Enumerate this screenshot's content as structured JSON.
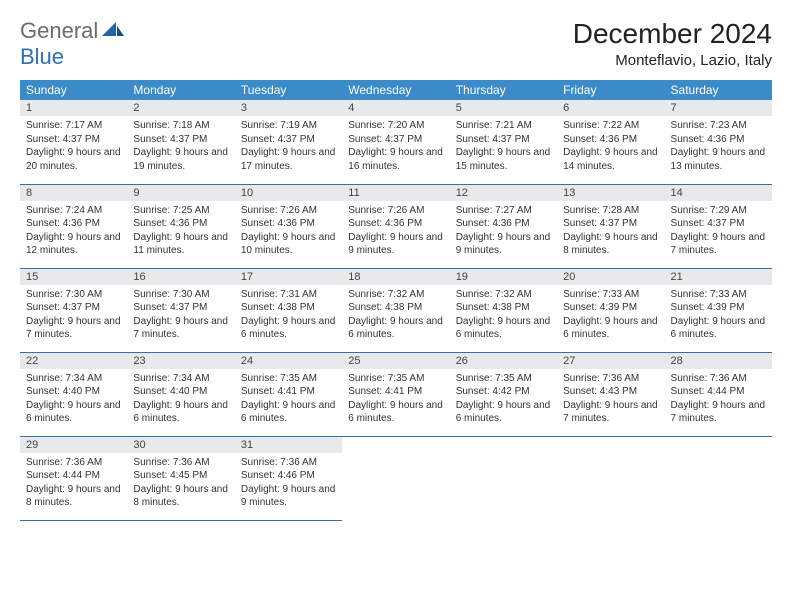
{
  "logo": {
    "part1": "General",
    "part2": "Blue"
  },
  "title": "December 2024",
  "location": "Monteflavio, Lazio, Italy",
  "colors": {
    "header_bg": "#3b8bc9",
    "header_text": "#ffffff",
    "daynum_bg": "#e8e9ea",
    "row_border": "#3b6ea0",
    "logo_gray": "#6b6b6b",
    "logo_blue": "#2d6fb0"
  },
  "weekdays": [
    "Sunday",
    "Monday",
    "Tuesday",
    "Wednesday",
    "Thursday",
    "Friday",
    "Saturday"
  ],
  "weeks": [
    [
      {
        "num": "1",
        "sunrise": "Sunrise: 7:17 AM",
        "sunset": "Sunset: 4:37 PM",
        "daylight": "Daylight: 9 hours and 20 minutes."
      },
      {
        "num": "2",
        "sunrise": "Sunrise: 7:18 AM",
        "sunset": "Sunset: 4:37 PM",
        "daylight": "Daylight: 9 hours and 19 minutes."
      },
      {
        "num": "3",
        "sunrise": "Sunrise: 7:19 AM",
        "sunset": "Sunset: 4:37 PM",
        "daylight": "Daylight: 9 hours and 17 minutes."
      },
      {
        "num": "4",
        "sunrise": "Sunrise: 7:20 AM",
        "sunset": "Sunset: 4:37 PM",
        "daylight": "Daylight: 9 hours and 16 minutes."
      },
      {
        "num": "5",
        "sunrise": "Sunrise: 7:21 AM",
        "sunset": "Sunset: 4:37 PM",
        "daylight": "Daylight: 9 hours and 15 minutes."
      },
      {
        "num": "6",
        "sunrise": "Sunrise: 7:22 AM",
        "sunset": "Sunset: 4:36 PM",
        "daylight": "Daylight: 9 hours and 14 minutes."
      },
      {
        "num": "7",
        "sunrise": "Sunrise: 7:23 AM",
        "sunset": "Sunset: 4:36 PM",
        "daylight": "Daylight: 9 hours and 13 minutes."
      }
    ],
    [
      {
        "num": "8",
        "sunrise": "Sunrise: 7:24 AM",
        "sunset": "Sunset: 4:36 PM",
        "daylight": "Daylight: 9 hours and 12 minutes."
      },
      {
        "num": "9",
        "sunrise": "Sunrise: 7:25 AM",
        "sunset": "Sunset: 4:36 PM",
        "daylight": "Daylight: 9 hours and 11 minutes."
      },
      {
        "num": "10",
        "sunrise": "Sunrise: 7:26 AM",
        "sunset": "Sunset: 4:36 PM",
        "daylight": "Daylight: 9 hours and 10 minutes."
      },
      {
        "num": "11",
        "sunrise": "Sunrise: 7:26 AM",
        "sunset": "Sunset: 4:36 PM",
        "daylight": "Daylight: 9 hours and 9 minutes."
      },
      {
        "num": "12",
        "sunrise": "Sunrise: 7:27 AM",
        "sunset": "Sunset: 4:36 PM",
        "daylight": "Daylight: 9 hours and 9 minutes."
      },
      {
        "num": "13",
        "sunrise": "Sunrise: 7:28 AM",
        "sunset": "Sunset: 4:37 PM",
        "daylight": "Daylight: 9 hours and 8 minutes."
      },
      {
        "num": "14",
        "sunrise": "Sunrise: 7:29 AM",
        "sunset": "Sunset: 4:37 PM",
        "daylight": "Daylight: 9 hours and 7 minutes."
      }
    ],
    [
      {
        "num": "15",
        "sunrise": "Sunrise: 7:30 AM",
        "sunset": "Sunset: 4:37 PM",
        "daylight": "Daylight: 9 hours and 7 minutes."
      },
      {
        "num": "16",
        "sunrise": "Sunrise: 7:30 AM",
        "sunset": "Sunset: 4:37 PM",
        "daylight": "Daylight: 9 hours and 7 minutes."
      },
      {
        "num": "17",
        "sunrise": "Sunrise: 7:31 AM",
        "sunset": "Sunset: 4:38 PM",
        "daylight": "Daylight: 9 hours and 6 minutes."
      },
      {
        "num": "18",
        "sunrise": "Sunrise: 7:32 AM",
        "sunset": "Sunset: 4:38 PM",
        "daylight": "Daylight: 9 hours and 6 minutes."
      },
      {
        "num": "19",
        "sunrise": "Sunrise: 7:32 AM",
        "sunset": "Sunset: 4:38 PM",
        "daylight": "Daylight: 9 hours and 6 minutes."
      },
      {
        "num": "20",
        "sunrise": "Sunrise: 7:33 AM",
        "sunset": "Sunset: 4:39 PM",
        "daylight": "Daylight: 9 hours and 6 minutes."
      },
      {
        "num": "21",
        "sunrise": "Sunrise: 7:33 AM",
        "sunset": "Sunset: 4:39 PM",
        "daylight": "Daylight: 9 hours and 6 minutes."
      }
    ],
    [
      {
        "num": "22",
        "sunrise": "Sunrise: 7:34 AM",
        "sunset": "Sunset: 4:40 PM",
        "daylight": "Daylight: 9 hours and 6 minutes."
      },
      {
        "num": "23",
        "sunrise": "Sunrise: 7:34 AM",
        "sunset": "Sunset: 4:40 PM",
        "daylight": "Daylight: 9 hours and 6 minutes."
      },
      {
        "num": "24",
        "sunrise": "Sunrise: 7:35 AM",
        "sunset": "Sunset: 4:41 PM",
        "daylight": "Daylight: 9 hours and 6 minutes."
      },
      {
        "num": "25",
        "sunrise": "Sunrise: 7:35 AM",
        "sunset": "Sunset: 4:41 PM",
        "daylight": "Daylight: 9 hours and 6 minutes."
      },
      {
        "num": "26",
        "sunrise": "Sunrise: 7:35 AM",
        "sunset": "Sunset: 4:42 PM",
        "daylight": "Daylight: 9 hours and 6 minutes."
      },
      {
        "num": "27",
        "sunrise": "Sunrise: 7:36 AM",
        "sunset": "Sunset: 4:43 PM",
        "daylight": "Daylight: 9 hours and 7 minutes."
      },
      {
        "num": "28",
        "sunrise": "Sunrise: 7:36 AM",
        "sunset": "Sunset: 4:44 PM",
        "daylight": "Daylight: 9 hours and 7 minutes."
      }
    ],
    [
      {
        "num": "29",
        "sunrise": "Sunrise: 7:36 AM",
        "sunset": "Sunset: 4:44 PM",
        "daylight": "Daylight: 9 hours and 8 minutes."
      },
      {
        "num": "30",
        "sunrise": "Sunrise: 7:36 AM",
        "sunset": "Sunset: 4:45 PM",
        "daylight": "Daylight: 9 hours and 8 minutes."
      },
      {
        "num": "31",
        "sunrise": "Sunrise: 7:36 AM",
        "sunset": "Sunset: 4:46 PM",
        "daylight": "Daylight: 9 hours and 9 minutes."
      },
      null,
      null,
      null,
      null
    ]
  ]
}
